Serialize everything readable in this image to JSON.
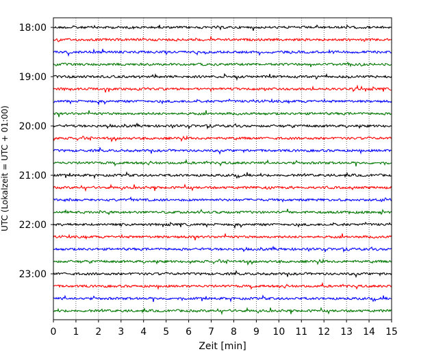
{
  "chart_data": {
    "type": "line",
    "title": "",
    "xlabel": "Zeit  [min]",
    "ylabel": "UTC (Lokalzeit = UTC + 01:00)",
    "xlim": [
      0,
      15
    ],
    "x_ticks": [
      0,
      1,
      2,
      3,
      4,
      5,
      6,
      7,
      8,
      9,
      10,
      11,
      12,
      13,
      14,
      15
    ],
    "y_tick_labels": [
      "18:00",
      "19:00",
      "20:00",
      "21:00",
      "22:00",
      "23:00"
    ],
    "grid": "vertical dotted lines at each minute",
    "trace_interval_min": 15,
    "first_trace": "18:00",
    "last_trace": "23:45",
    "trace_count": 24,
    "trace_colors": [
      "#000000",
      "#ff0000",
      "#0000ff",
      "#007700"
    ],
    "legend": "none"
  }
}
